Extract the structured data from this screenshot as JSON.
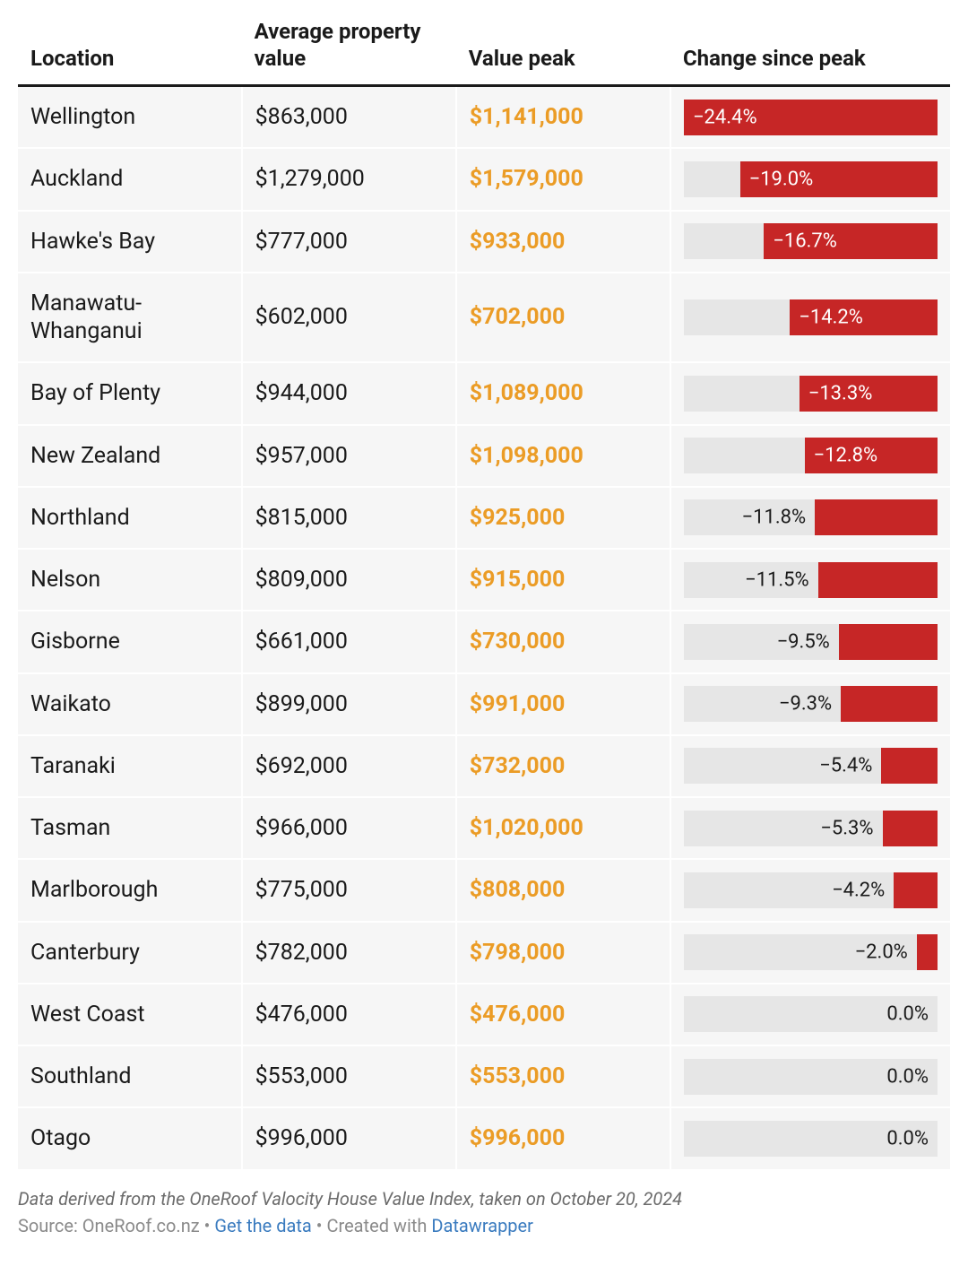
{
  "columns": {
    "location": "Location",
    "avg": "Average property value",
    "peak": "Value peak",
    "change": "Change since peak"
  },
  "style": {
    "peak_color": "#eb9c26",
    "bar_track_color": "#e6e6e6",
    "bar_fill_color": "#c62626",
    "row_bg": "#f6f6f6",
    "header_border": "#1a1a1a",
    "text_color": "#1a1a1a",
    "bar_min": -24.4,
    "bar_max": 0,
    "header_fontsize": 24,
    "cell_fontsize": 25,
    "bar_label_fontsize": 22,
    "footer_fontsize": 20
  },
  "rows": [
    {
      "location": "Wellington",
      "avg": "$863,000",
      "peak": "$1,141,000",
      "change_label": "−24.4%",
      "change_value": -24.4,
      "label_inside": true
    },
    {
      "location": "Auckland",
      "avg": "$1,279,000",
      "peak": "$1,579,000",
      "change_label": "−19.0%",
      "change_value": -19.0,
      "label_inside": true
    },
    {
      "location": "Hawke's Bay",
      "avg": "$777,000",
      "peak": "$933,000",
      "change_label": "−16.7%",
      "change_value": -16.7,
      "label_inside": true
    },
    {
      "location": "Manawatu-Whanganui",
      "avg": "$602,000",
      "peak": "$702,000",
      "change_label": "−14.2%",
      "change_value": -14.2,
      "label_inside": true
    },
    {
      "location": "Bay of Plenty",
      "avg": "$944,000",
      "peak": "$1,089,000",
      "change_label": "−13.3%",
      "change_value": -13.3,
      "label_inside": true
    },
    {
      "location": "New Zealand",
      "avg": "$957,000",
      "peak": "$1,098,000",
      "change_label": "−12.8%",
      "change_value": -12.8,
      "label_inside": true
    },
    {
      "location": "Northland",
      "avg": "$815,000",
      "peak": "$925,000",
      "change_label": "−11.8%",
      "change_value": -11.8,
      "label_inside": false
    },
    {
      "location": "Nelson",
      "avg": "$809,000",
      "peak": "$915,000",
      "change_label": "−11.5%",
      "change_value": -11.5,
      "label_inside": false
    },
    {
      "location": "Gisborne",
      "avg": "$661,000",
      "peak": "$730,000",
      "change_label": "−9.5%",
      "change_value": -9.5,
      "label_inside": false
    },
    {
      "location": "Waikato",
      "avg": "$899,000",
      "peak": "$991,000",
      "change_label": "−9.3%",
      "change_value": -9.3,
      "label_inside": false
    },
    {
      "location": "Taranaki",
      "avg": "$692,000",
      "peak": "$732,000",
      "change_label": "−5.4%",
      "change_value": -5.4,
      "label_inside": false
    },
    {
      "location": "Tasman",
      "avg": "$966,000",
      "peak": "$1,020,000",
      "change_label": "−5.3%",
      "change_value": -5.3,
      "label_inside": false
    },
    {
      "location": "Marlborough",
      "avg": "$775,000",
      "peak": "$808,000",
      "change_label": "−4.2%",
      "change_value": -4.2,
      "label_inside": false
    },
    {
      "location": "Canterbury",
      "avg": "$782,000",
      "peak": "$798,000",
      "change_label": "−2.0%",
      "change_value": -2.0,
      "label_inside": false
    },
    {
      "location": "West Coast",
      "avg": "$476,000",
      "peak": "$476,000",
      "change_label": "0.0%",
      "change_value": 0.0,
      "label_inside": false
    },
    {
      "location": "Southland",
      "avg": "$553,000",
      "peak": "$553,000",
      "change_label": "0.0%",
      "change_value": 0.0,
      "label_inside": false
    },
    {
      "location": "Otago",
      "avg": "$996,000",
      "peak": "$996,000",
      "change_label": "0.0%",
      "change_value": 0.0,
      "label_inside": false
    }
  ],
  "footer": {
    "note": "Data derived from the OneRoof Valocity House Value Index, taken on October 20, 2024",
    "source_prefix": "Source: OneRoof.co.nz",
    "sep": " • ",
    "get_data": "Get the data",
    "created_prefix": "Created with ",
    "created_link": "Datawrapper"
  }
}
